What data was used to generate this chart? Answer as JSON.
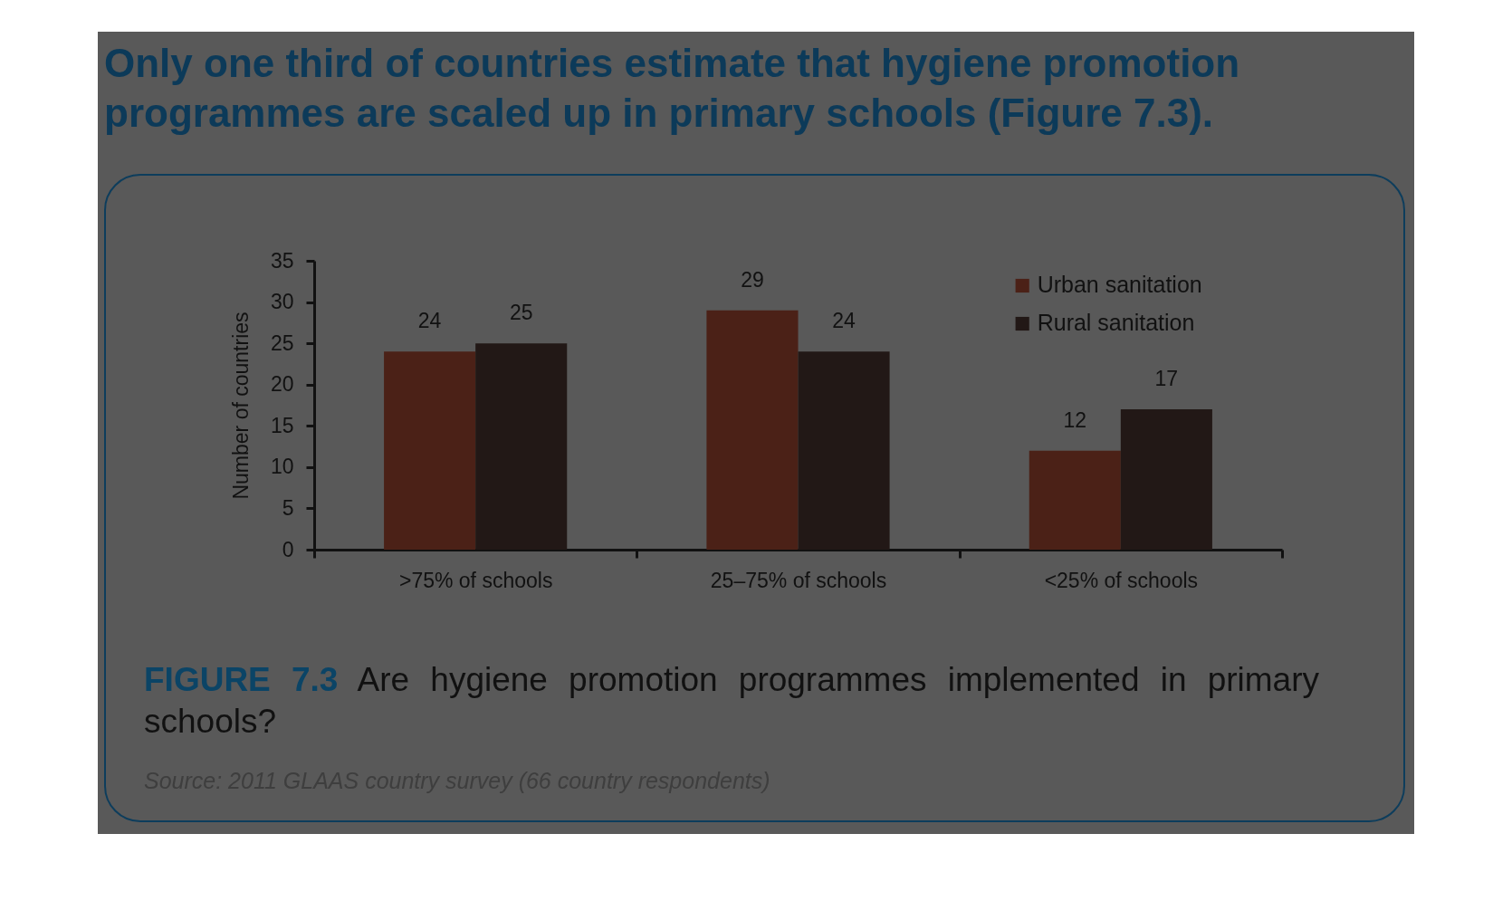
{
  "chart_data": {
    "type": "bar",
    "title": "Only one third of countries estimate that hygiene promotion programmes are scaled up in primary schools (Figure 7.3).",
    "ylabel": "Number of countries",
    "categories": [
      ">75% of schools",
      "25–75% of schools",
      "<25% of schools"
    ],
    "series": [
      {
        "name": "Urban sanitation",
        "color": "#4b2117",
        "values": [
          24,
          29,
          12
        ]
      },
      {
        "name": "Rural sanitation",
        "color": "#221816",
        "values": [
          25,
          24,
          17
        ]
      }
    ],
    "ylim": [
      0,
      35
    ],
    "yticks": [
      0,
      5,
      10,
      15,
      20,
      25,
      30,
      35
    ],
    "data_labels": true,
    "legend": "top right",
    "annotations": [
      "FIGURE 7.3",
      "Are hygiene promotion programmes implemented in primary schools?",
      "Source: 2011 GLAAS country survey (66 country respondents)"
    ]
  }
}
